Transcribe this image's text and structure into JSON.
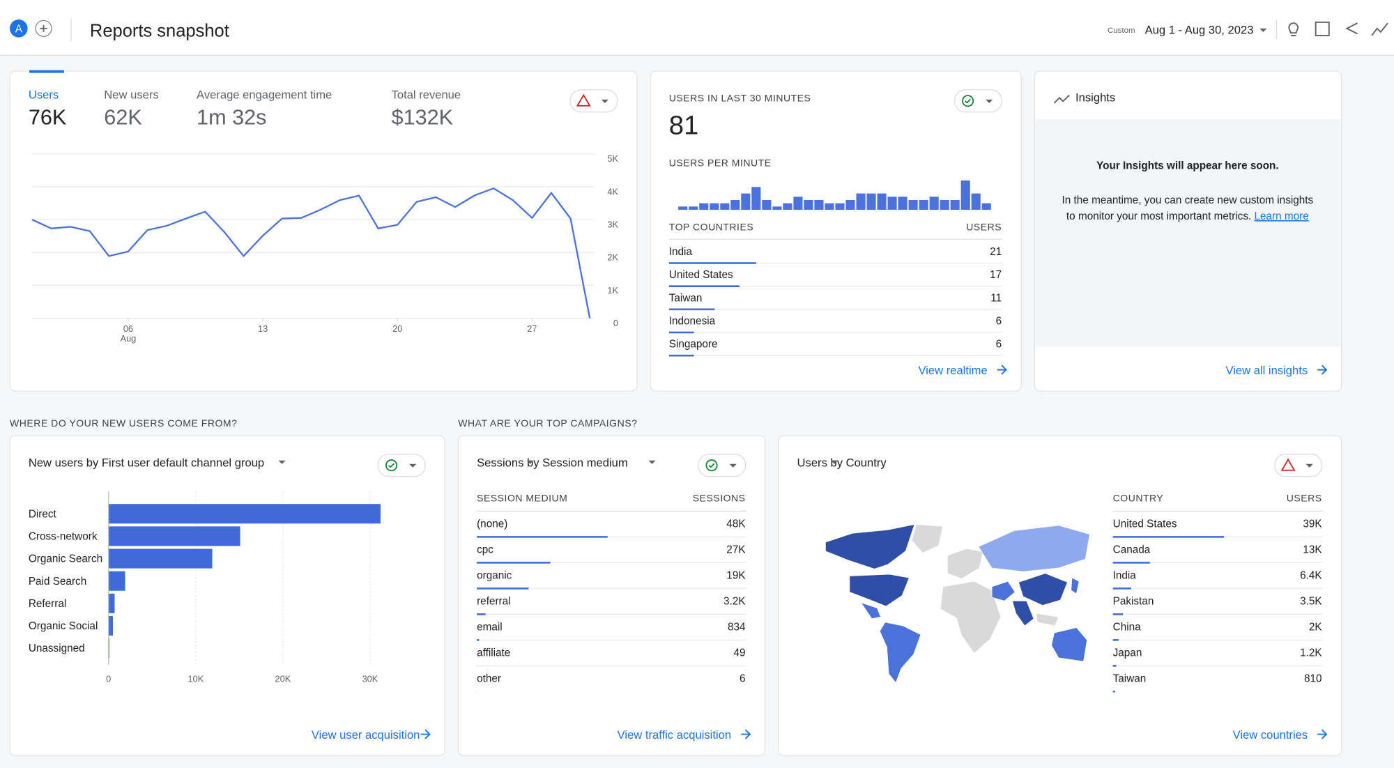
{
  "header": {
    "avatar": "A",
    "title": "Reports snapshot",
    "date_label": "Custom",
    "date_range": "Aug 1 - Aug 30, 2023"
  },
  "overview": {
    "metrics": [
      {
        "label": "Users",
        "value": "76K"
      },
      {
        "label": "New users",
        "value": "62K"
      },
      {
        "label": "Average engagement time",
        "value": "1m 32s"
      },
      {
        "label": "Total revenue",
        "value": "$132K"
      }
    ],
    "chart": {
      "type": "line",
      "color": "#4a72da",
      "x": [
        1,
        2,
        3,
        4,
        5,
        6,
        7,
        8,
        9,
        10,
        11,
        12,
        13,
        14,
        15,
        16,
        17,
        18,
        19,
        20,
        21,
        22,
        23,
        24,
        25,
        26,
        27,
        28,
        29,
        30
      ],
      "values": [
        3000,
        2730,
        2780,
        2650,
        1890,
        2030,
        2680,
        2810,
        3030,
        3240,
        2620,
        1890,
        2510,
        3030,
        3050,
        3300,
        3590,
        3730,
        2730,
        2840,
        3540,
        3680,
        3380,
        3730,
        3950,
        3590,
        3050,
        3810,
        3030,
        0
      ],
      "xlim": [
        1,
        30
      ],
      "xticks": [
        {
          "value": 6,
          "label": "06"
        },
        13,
        20,
        27
      ],
      "x_month": "Aug",
      "ylim": [
        0,
        5000
      ],
      "yticks": [
        {
          "value": 5000,
          "label": "5K"
        },
        {
          "value": 4000,
          "label": "4K"
        },
        {
          "value": 3000,
          "label": "3K"
        },
        {
          "value": 2000,
          "label": "2K"
        },
        {
          "value": 1000,
          "label": "1K"
        },
        0
      ],
      "grid": true
    }
  },
  "realtime": {
    "title": "USERS IN LAST 30 MINUTES",
    "value": "81",
    "per_minute_label": "USERS PER MINUTE",
    "per_minute": {
      "type": "bar",
      "color": "#4a72da",
      "values": [
        1,
        1,
        2,
        2,
        2,
        3,
        5,
        7,
        3,
        1,
        2,
        4,
        3,
        3,
        2,
        2,
        3,
        5,
        5,
        5,
        4,
        4,
        3,
        3,
        4,
        3,
        3,
        9,
        5,
        2
      ]
    },
    "table": {
      "headers": [
        "TOP COUNTRIES",
        "USERS"
      ],
      "rows": [
        {
          "name": "India",
          "value": 21
        },
        {
          "name": "United States",
          "value": 17
        },
        {
          "name": "Taiwan",
          "value": 11
        },
        {
          "name": "Indonesia",
          "value": 6
        },
        {
          "name": "Singapore",
          "value": 6
        }
      ]
    },
    "link": "View realtime"
  },
  "insights": {
    "title": "Insights",
    "heading": "Your Insights will appear here soon.",
    "body_line1": "In the meantime, you can create new custom insights",
    "body_line2": "to monitor your most important metrics.",
    "learn_more": "Learn more",
    "link": "View all insights"
  },
  "sections": [
    "WHERE DO YOUR NEW USERS COME FROM?",
    "WHAT ARE YOUR TOP CAMPAIGNS?"
  ],
  "acquisition": {
    "title_metric": "New users",
    "title_dim": "by First user default channel group",
    "chart": {
      "type": "bar",
      "orientation": "horizontal",
      "color": "#3f6ad8",
      "categories": [
        "Direct",
        "Cross-network",
        "Organic Search",
        "Paid Search",
        "Referral",
        "Organic Social",
        "Unassigned"
      ],
      "values": [
        31200,
        15100,
        11900,
        1900,
        700,
        500,
        100
      ],
      "xlim": [
        0,
        30000
      ],
      "xticks": [
        0,
        {
          "value": 10000,
          "label": "10K"
        },
        {
          "value": 20000,
          "label": "20K"
        },
        {
          "value": 30000,
          "label": "30K"
        }
      ]
    },
    "link": "View user acquisition"
  },
  "campaigns": {
    "title_metric": "Sessions",
    "title_dim": "by Session medium",
    "headers": [
      "SESSION MEDIUM",
      "SESSIONS"
    ],
    "rows": [
      {
        "name": "(none)",
        "value": 48000,
        "label": "48K"
      },
      {
        "name": "cpc",
        "value": 27000,
        "label": "27K"
      },
      {
        "name": "organic",
        "value": 19000,
        "label": "19K"
      },
      {
        "name": "referral",
        "value": 3200,
        "label": "3.2K"
      },
      {
        "name": "email",
        "value": 834,
        "label": "834"
      },
      {
        "name": "affiliate",
        "value": 49,
        "label": "49"
      },
      {
        "name": "other",
        "value": 6,
        "label": "6"
      }
    ],
    "link": "View traffic acquisition"
  },
  "countries": {
    "title_metric": "Users",
    "title_dim": "by Country",
    "headers": [
      "COUNTRY",
      "USERS"
    ],
    "rows": [
      {
        "name": "United States",
        "value": 39000,
        "label": "39K"
      },
      {
        "name": "Canada",
        "value": 13000,
        "label": "13K"
      },
      {
        "name": "India",
        "value": 6400,
        "label": "6.4K"
      },
      {
        "name": "Pakistan",
        "value": 3500,
        "label": "3.5K"
      },
      {
        "name": "China",
        "value": 2000,
        "label": "2K"
      },
      {
        "name": "Japan",
        "value": 1200,
        "label": "1.2K"
      },
      {
        "name": "Taiwan",
        "value": 810,
        "label": "810"
      }
    ],
    "link": "View countries"
  }
}
